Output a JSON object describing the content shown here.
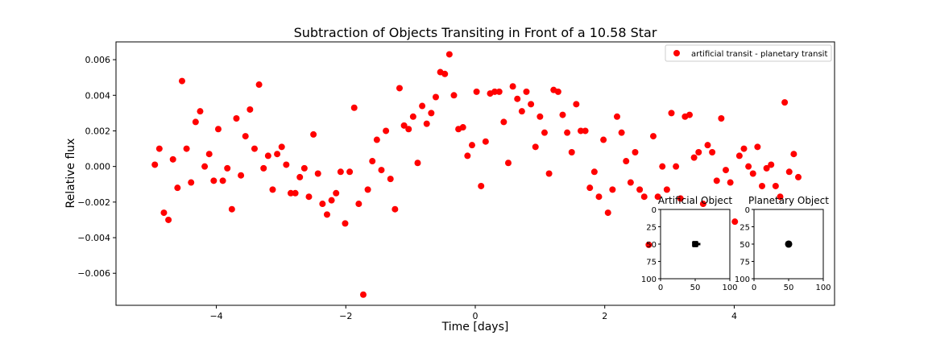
{
  "chart_data": [
    {
      "type": "scatter",
      "title": "Subtraction of Objects Transiting in Front of a 10.58 Star",
      "xlabel": "Time [days]",
      "ylabel": "Relative flux",
      "xlim": [
        -5.55,
        5.55
      ],
      "ylim": [
        -0.0078,
        0.007
      ],
      "xticks": [
        -4,
        -2,
        0,
        2,
        4
      ],
      "xtick_labels": [
        "−4",
        "−2",
        "0",
        "2",
        "4"
      ],
      "yticks": [
        -0.006,
        -0.004,
        -0.002,
        0.0,
        0.002,
        0.004,
        0.006
      ],
      "ytick_labels": [
        "−0.006",
        "−0.004",
        "−0.002",
        "0.000",
        "0.002",
        "0.004",
        "0.006"
      ],
      "grid": false,
      "legend_position": "top-right",
      "series": [
        {
          "name": "artificial transit - planetary transit",
          "color": "#ff0000",
          "marker": "circle",
          "points": [
            [
              -4.95,
              0.0001
            ],
            [
              -4.88,
              0.001
            ],
            [
              -4.81,
              -0.0026
            ],
            [
              -4.74,
              -0.003
            ],
            [
              -4.67,
              0.0004
            ],
            [
              -4.6,
              -0.0012
            ],
            [
              -4.53,
              0.0048
            ],
            [
              -4.46,
              0.001
            ],
            [
              -4.39,
              -0.0009
            ],
            [
              -4.32,
              0.0025
            ],
            [
              -4.25,
              0.0031
            ],
            [
              -4.18,
              0.0
            ],
            [
              -4.11,
              0.0007
            ],
            [
              -4.04,
              -0.0008
            ],
            [
              -3.97,
              0.0021
            ],
            [
              -3.9,
              -0.0008
            ],
            [
              -3.83,
              -0.0001
            ],
            [
              -3.76,
              -0.0024
            ],
            [
              -3.69,
              0.0027
            ],
            [
              -3.62,
              -0.0005
            ],
            [
              -3.55,
              0.0017
            ],
            [
              -3.48,
              0.0032
            ],
            [
              -3.41,
              0.001
            ],
            [
              -3.34,
              0.0046
            ],
            [
              -3.27,
              -0.0001
            ],
            [
              -3.2,
              0.0006
            ],
            [
              -3.13,
              -0.0013
            ],
            [
              -3.06,
              0.0007
            ],
            [
              -2.99,
              0.0011
            ],
            [
              -2.92,
              0.0001
            ],
            [
              -2.85,
              -0.0015
            ],
            [
              -2.78,
              -0.0015
            ],
            [
              -2.71,
              -0.0006
            ],
            [
              -2.64,
              -0.0001
            ],
            [
              -2.57,
              -0.0017
            ],
            [
              -2.5,
              0.0018
            ],
            [
              -2.43,
              -0.0004
            ],
            [
              -2.36,
              -0.0021
            ],
            [
              -2.29,
              -0.0027
            ],
            [
              -2.22,
              -0.0019
            ],
            [
              -2.15,
              -0.0015
            ],
            [
              -2.08,
              -0.0003
            ],
            [
              -2.01,
              -0.0032
            ],
            [
              -1.94,
              -0.0003
            ],
            [
              -1.87,
              0.0033
            ],
            [
              -1.8,
              -0.0021
            ],
            [
              -1.73,
              -0.0072
            ],
            [
              -1.66,
              -0.0013
            ],
            [
              -1.59,
              0.0003
            ],
            [
              -1.52,
              0.0015
            ],
            [
              -1.45,
              -0.0002
            ],
            [
              -1.38,
              0.002
            ],
            [
              -1.31,
              -0.0007
            ],
            [
              -1.24,
              -0.0024
            ],
            [
              -1.17,
              0.0044
            ],
            [
              -1.1,
              0.0023
            ],
            [
              -1.03,
              0.0021
            ],
            [
              -0.96,
              0.0028
            ],
            [
              -0.89,
              0.0002
            ],
            [
              -0.82,
              0.0034
            ],
            [
              -0.75,
              0.0024
            ],
            [
              -0.68,
              0.003
            ],
            [
              -0.61,
              0.0039
            ],
            [
              -0.54,
              0.0053
            ],
            [
              -0.47,
              0.0052
            ],
            [
              -0.4,
              0.0063
            ],
            [
              -0.33,
              0.004
            ],
            [
              -0.26,
              0.0021
            ],
            [
              -0.19,
              0.0022
            ],
            [
              -0.12,
              0.0006
            ],
            [
              -0.05,
              0.0012
            ],
            [
              0.02,
              0.0042
            ],
            [
              0.09,
              -0.0011
            ],
            [
              0.16,
              0.0014
            ],
            [
              0.23,
              0.0041
            ],
            [
              0.3,
              0.0042
            ],
            [
              0.37,
              0.0042
            ],
            [
              0.44,
              0.0025
            ],
            [
              0.51,
              0.0002
            ],
            [
              0.58,
              0.0045
            ],
            [
              0.65,
              0.0038
            ],
            [
              0.72,
              0.0031
            ],
            [
              0.79,
              0.0042
            ],
            [
              0.86,
              0.0035
            ],
            [
              0.93,
              0.0011
            ],
            [
              1.0,
              0.0028
            ],
            [
              1.07,
              0.0019
            ],
            [
              1.14,
              -0.0004
            ],
            [
              1.21,
              0.0043
            ],
            [
              1.28,
              0.0042
            ],
            [
              1.35,
              0.0029
            ],
            [
              1.42,
              0.0019
            ],
            [
              1.49,
              0.0008
            ],
            [
              1.56,
              0.0035
            ],
            [
              1.63,
              0.002
            ],
            [
              1.7,
              0.002
            ],
            [
              1.77,
              -0.0012
            ],
            [
              1.84,
              -0.0003
            ],
            [
              1.91,
              -0.0017
            ],
            [
              1.98,
              0.0015
            ],
            [
              2.05,
              -0.0026
            ],
            [
              2.12,
              -0.0013
            ],
            [
              2.19,
              0.0028
            ],
            [
              2.26,
              0.0019
            ],
            [
              2.33,
              0.0003
            ],
            [
              2.4,
              -0.0009
            ],
            [
              2.47,
              0.0008
            ],
            [
              2.54,
              -0.0013
            ],
            [
              2.61,
              -0.0017
            ],
            [
              2.68,
              -0.0044
            ],
            [
              2.75,
              0.0017
            ],
            [
              2.82,
              -0.0017
            ],
            [
              2.89,
              0.0
            ],
            [
              2.96,
              -0.0013
            ],
            [
              3.03,
              0.003
            ],
            [
              3.1,
              0.0
            ],
            [
              3.17,
              -0.0018
            ],
            [
              3.24,
              0.0028
            ],
            [
              3.31,
              0.0029
            ],
            [
              3.38,
              0.0005
            ],
            [
              3.45,
              0.0008
            ],
            [
              3.52,
              -0.0021
            ],
            [
              3.59,
              0.0012
            ],
            [
              3.66,
              0.0008
            ],
            [
              3.73,
              -0.0008
            ],
            [
              3.8,
              0.0027
            ],
            [
              3.87,
              -0.0002
            ],
            [
              3.94,
              -0.0009
            ],
            [
              4.01,
              -0.0031
            ],
            [
              4.08,
              0.0006
            ],
            [
              4.15,
              0.001
            ],
            [
              4.22,
              0.0
            ],
            [
              4.29,
              -0.0004
            ],
            [
              4.36,
              0.0011
            ],
            [
              4.43,
              -0.0011
            ],
            [
              4.5,
              -0.0001
            ],
            [
              4.57,
              0.0001
            ],
            [
              4.64,
              -0.0011
            ],
            [
              4.71,
              -0.0017
            ],
            [
              4.78,
              0.0036
            ],
            [
              4.85,
              -0.0003
            ],
            [
              4.92,
              0.0007
            ],
            [
              4.99,
              -0.0006
            ]
          ]
        }
      ]
    },
    {
      "type": "image",
      "title": "Artificial Object",
      "xlim": [
        0,
        100
      ],
      "ylim": [
        100,
        0
      ],
      "xticks": [
        0,
        50,
        100
      ],
      "yticks": [
        0,
        25,
        50,
        75,
        100
      ],
      "object": {
        "shape": "square-ish blob",
        "center": [
          50,
          50
        ],
        "radius": 5,
        "color": "#000000"
      }
    },
    {
      "type": "image",
      "title": "Planetary Object",
      "xlim": [
        0,
        100
      ],
      "ylim": [
        100,
        0
      ],
      "xticks": [
        0,
        50,
        100
      ],
      "yticks": [
        0,
        25,
        50,
        75,
        100
      ],
      "object": {
        "shape": "disc",
        "center": [
          50,
          50
        ],
        "radius": 5,
        "color": "#000000"
      }
    }
  ]
}
